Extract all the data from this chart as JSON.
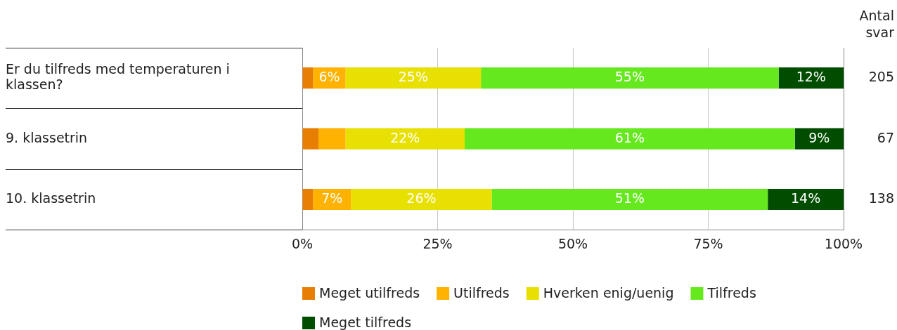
{
  "chart_data": {
    "type": "bar",
    "orientation": "horizontal",
    "stacked": true,
    "categories": [
      "Er du tilfreds med temperaturen i klassen?",
      "9. klassetrin",
      "10. klassetrin"
    ],
    "series": [
      {
        "name": "Meget utilfreds",
        "color": "#e87e04",
        "values": [
          2,
          3,
          2
        ],
        "value_labels": [
          null,
          null,
          null
        ]
      },
      {
        "name": "Utilfreds",
        "color": "#ffb300",
        "values": [
          6,
          5,
          7
        ],
        "value_labels": [
          "6%",
          null,
          "7%"
        ]
      },
      {
        "name": "Hverken enig/uenig",
        "color": "#e8e000",
        "values": [
          25,
          22,
          26
        ],
        "value_labels": [
          "25%",
          "22%",
          "26%"
        ]
      },
      {
        "name": "Tilfreds",
        "color": "#66e81f",
        "values": [
          55,
          61,
          51
        ],
        "value_labels": [
          "55%",
          "61%",
          "51%"
        ]
      },
      {
        "name": "Meget tilfreds",
        "color": "#004d00",
        "values": [
          12,
          9,
          14
        ],
        "value_labels": [
          "12%",
          "9%",
          "14%"
        ]
      }
    ],
    "xlim": [
      0,
      100
    ],
    "xticks": [
      {
        "value": 0,
        "label": "0%"
      },
      {
        "value": 25,
        "label": "25%"
      },
      {
        "value": 50,
        "label": "50%"
      },
      {
        "value": 75,
        "label": "75%"
      },
      {
        "value": 100,
        "label": "100%"
      }
    ],
    "grid": "x",
    "legend": "bottom",
    "annotations": [
      "Antal svar",
      "205",
      "67",
      "138"
    ]
  }
}
